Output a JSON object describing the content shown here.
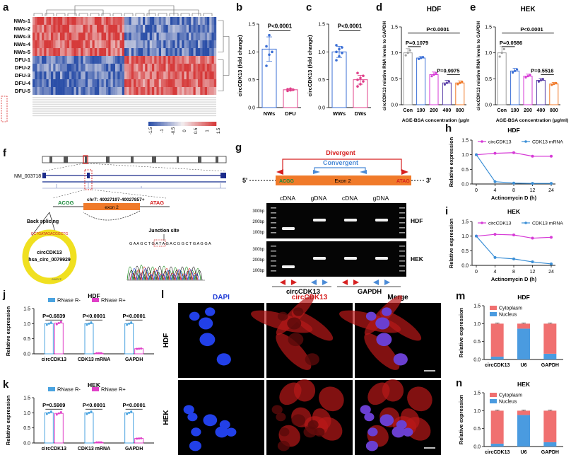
{
  "panels": {
    "a": {
      "label": "a",
      "rows": [
        "NWs-1",
        "NWs-2",
        "NWs-3",
        "NWs-4",
        "NWs-5",
        "DFU-1",
        "DFU-2",
        "DFU-3",
        "DFU-4",
        "DFU-5"
      ],
      "colorbar_ticks": [
        "-1.5",
        "-1",
        "-0.5",
        "0",
        "0.5",
        "1",
        "1.5"
      ],
      "colors": {
        "low": "#2b4fa8",
        "mid": "#f3eef0",
        "high": "#d63a3a"
      }
    },
    "b": {
      "label": "b"
    },
    "c": {
      "label": "c"
    },
    "d": {
      "label": "d"
    },
    "e": {
      "label": "e"
    },
    "f": {
      "label": "f",
      "transcript": "NM_003718",
      "locus": "chr7: 40027197-40027857+",
      "exon": "exon 2",
      "left_seq": "ACGG",
      "right_seq": "ATAG",
      "back_splicing": "Back splicing",
      "junction_site": "Junction site",
      "circ_name": "circCDK13",
      "circ_id": "hsa_circ_0079929",
      "circle_seq": "GCTGATAGACGGCTG",
      "circle_exon": "exon 2",
      "sanger_seq": "G A A G C T G A T A G A C G G C T G A G G A"
    },
    "g": {
      "label": "g",
      "divergent": "Divergent",
      "convergent": "Convergent",
      "five_prime": "5'",
      "three_prime": "3'",
      "left_seq": "ACGG",
      "exon": "Exon 2",
      "right_seq": "ATAG",
      "lane_headers": [
        "cDNA",
        "gDNA",
        "cDNA",
        "gDNA"
      ],
      "markers": [
        "300bp",
        "200bp",
        "100bp"
      ],
      "rows": [
        "HDF",
        "HEK"
      ],
      "groups": [
        "circCDK13",
        "GAPDH"
      ]
    },
    "h": {
      "label": "h"
    },
    "i": {
      "label": "i"
    },
    "j": {
      "label": "j"
    },
    "k": {
      "label": "k"
    },
    "l": {
      "label": "l",
      "cols": [
        "DAPI",
        "circCDK13",
        "Merge"
      ],
      "rows": [
        "HDF",
        "HEK"
      ],
      "col_colors": [
        "#1f3bd6",
        "#d62020",
        "#000000"
      ]
    },
    "m": {
      "label": "m"
    },
    "n": {
      "label": "n"
    }
  },
  "chart_data": [
    {
      "id": "b",
      "type": "bar",
      "ylabel": "circCDK13 (fold change)",
      "categories": [
        "NWs",
        "DFU"
      ],
      "values": [
        1.05,
        0.32
      ],
      "errors": [
        0.22,
        0.02
      ],
      "points": [
        [
          0.75,
          0.95,
          1.0,
          1.1,
          1.3
        ],
        [
          0.3,
          0.31,
          0.32,
          0.33,
          0.34
        ]
      ],
      "ylim": [
        0,
        1.5
      ],
      "yticks": [
        "0.0",
        "0.5",
        "1.0",
        "1.5"
      ],
      "annotation": "P<0.0001",
      "colors": [
        "#3b6fd6",
        "#e0408a"
      ]
    },
    {
      "id": "c",
      "type": "bar",
      "ylabel": "circCDK13 (fold change)",
      "categories": [
        "WWs",
        "DWs"
      ],
      "values": [
        1.0,
        0.5
      ],
      "errors": [
        0.1,
        0.08
      ],
      "points": [
        [
          0.85,
          0.92,
          0.98,
          1.0,
          1.05,
          1.08,
          1.12
        ],
        [
          0.38,
          0.42,
          0.47,
          0.5,
          0.53,
          0.57,
          0.62
        ]
      ],
      "ylim": [
        0,
        1.5
      ],
      "yticks": [
        "0.0",
        "0.5",
        "1.0",
        "1.5"
      ],
      "annotation": "P<0.0001",
      "colors": [
        "#3b6fd6",
        "#e0408a"
      ]
    },
    {
      "id": "d",
      "type": "bar",
      "title": "HDF",
      "ylabel": "circCDK13 relative RNA levels to GAPDH",
      "xlabel": "AGE-BSA concentration (μg/ml)",
      "categories": [
        "Con",
        "100",
        "200",
        "400",
        "800"
      ],
      "values": [
        1.0,
        0.9,
        0.58,
        0.42,
        0.42
      ],
      "errors": [
        0.08,
        0.03,
        0.05,
        0.05,
        0.04
      ],
      "ylim": [
        0,
        1.5
      ],
      "yticks": [
        "0.0",
        "0.5",
        "1.0",
        "1.5"
      ],
      "annotations": [
        "P=0.1079",
        "P<0.0001",
        "P=0.9975"
      ],
      "colors": [
        "#9e9e9e",
        "#3b6fd6",
        "#d63ad6",
        "#5a3fa8",
        "#f07a2a"
      ]
    },
    {
      "id": "e",
      "type": "bar",
      "title": "HEK",
      "ylabel": "circCDK13 relative RNA levels to GAPDH",
      "xlabel": "AGE-BSA concentration (μg/ml)",
      "categories": [
        "Con",
        "100",
        "200",
        "400",
        "800"
      ],
      "values": [
        1.0,
        0.65,
        0.55,
        0.47,
        0.4
      ],
      "errors": [
        0.12,
        0.05,
        0.04,
        0.04,
        0.03
      ],
      "ylim": [
        0,
        1.5
      ],
      "yticks": [
        "0.0",
        "0.5",
        "1.0",
        "1.5"
      ],
      "annotations": [
        "P=0.0586",
        "P<0.0001",
        "P=0.5516"
      ],
      "colors": [
        "#9e9e9e",
        "#3b6fd6",
        "#d63ad6",
        "#5a3fa8",
        "#f07a2a"
      ]
    },
    {
      "id": "h",
      "type": "line",
      "title": "HDF",
      "xlabel": "Actinomycin D (h)",
      "ylabel": "Relative expression",
      "x": [
        0,
        4,
        8,
        12,
        24
      ],
      "xticks": [
        "0",
        "4",
        "8",
        "12",
        "24"
      ],
      "series": [
        {
          "name": "circCDK13",
          "values": [
            1.0,
            1.05,
            1.07,
            0.95,
            0.95
          ],
          "color": "#d63ad6"
        },
        {
          "name": "CDK13 mRNA",
          "values": [
            1.0,
            0.08,
            0.03,
            0.02,
            0.02
          ],
          "color": "#3b8fd6"
        }
      ],
      "ylim": [
        0,
        1.5
      ],
      "yticks": [
        "0.0",
        "0.5",
        "1.0",
        "1.5"
      ]
    },
    {
      "id": "i",
      "type": "line",
      "title": "HEK",
      "xlabel": "Actinomycin D (h)",
      "ylabel": "Relative expression",
      "x": [
        0,
        4,
        8,
        12,
        24
      ],
      "xticks": [
        "0",
        "4",
        "8",
        "12",
        "24"
      ],
      "series": [
        {
          "name": "circCDK13",
          "values": [
            1.0,
            1.06,
            1.04,
            0.93,
            0.96
          ],
          "color": "#d63ad6"
        },
        {
          "name": "CDK13 mRNA",
          "values": [
            1.0,
            0.27,
            0.22,
            0.12,
            0.05
          ],
          "color": "#3b8fd6"
        }
      ],
      "ylim": [
        0,
        1.5
      ],
      "yticks": [
        "0.0",
        "0.5",
        "1.0",
        "1.5"
      ]
    },
    {
      "id": "j",
      "type": "bar",
      "title": "HDF",
      "ylabel": "Relative expression",
      "categories": [
        "circCDK13",
        "CDK13 mRNA",
        "GAPDH"
      ],
      "series": [
        {
          "name": "RNase R-",
          "values": [
            1.0,
            1.0,
            1.0
          ],
          "color": "#4aa3e0"
        },
        {
          "name": "RNase R+",
          "values": [
            1.02,
            0.02,
            0.17
          ],
          "color": "#e040c8"
        }
      ],
      "ylim": [
        0,
        1.5
      ],
      "yticks": [
        "0.0",
        "0.5",
        "1.0",
        "1.5"
      ],
      "annotations": [
        "P=0.6839",
        "P<0.0001",
        "P<0.0001"
      ]
    },
    {
      "id": "k",
      "type": "bar",
      "title": "HEK",
      "ylabel": "Relative expression",
      "categories": [
        "circCDK13",
        "CDK13 mRNA",
        "GAPDH"
      ],
      "series": [
        {
          "name": "RNase R-",
          "values": [
            1.0,
            1.0,
            1.0
          ],
          "color": "#4aa3e0"
        },
        {
          "name": "RNase R+",
          "values": [
            0.98,
            0.02,
            0.15
          ],
          "color": "#e040c8"
        }
      ],
      "ylim": [
        0,
        1.5
      ],
      "yticks": [
        "0.0",
        "0.5",
        "1.0",
        "1.5"
      ],
      "annotations": [
        "P=0.5909",
        "P<0.0001",
        "P<0.0001"
      ]
    },
    {
      "id": "m",
      "type": "bar",
      "title": "HDF",
      "ylabel": "Relative expression",
      "categories": [
        "circCDK13",
        "U6",
        "GAPDH"
      ],
      "series": [
        {
          "name": "Cytoplasm",
          "values": [
            0.92,
            0.14,
            0.84
          ],
          "color": "#f07070"
        },
        {
          "name": "Nucleus",
          "values": [
            0.08,
            0.86,
            0.16
          ],
          "color": "#4a9be0"
        }
      ],
      "stacked": true,
      "ylim": [
        0,
        1.5
      ],
      "yticks": [
        "0.0",
        "0.5",
        "1.0",
        "1.5"
      ]
    },
    {
      "id": "n",
      "type": "bar",
      "title": "HEK",
      "ylabel": "Relative expression",
      "categories": [
        "circCDK13",
        "U6",
        "GAPDH"
      ],
      "series": [
        {
          "name": "Cytoplasm",
          "values": [
            0.92,
            0.12,
            0.88
          ],
          "color": "#f07070"
        },
        {
          "name": "Nucleus",
          "values": [
            0.08,
            0.88,
            0.12
          ],
          "color": "#4a9be0"
        }
      ],
      "stacked": true,
      "ylim": [
        0,
        1.5
      ],
      "yticks": [
        "0.0",
        "0.5",
        "1.0",
        "1.5"
      ]
    }
  ]
}
